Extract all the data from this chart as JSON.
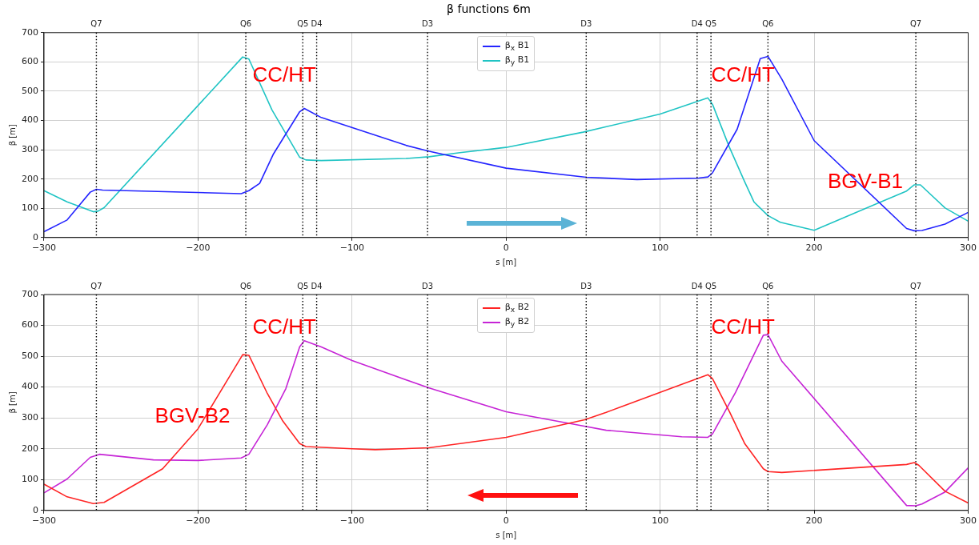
{
  "chart_data": [
    {
      "type": "line",
      "title": "β functions 6m",
      "xlabel": "s [m]",
      "ylabel": "β [m]",
      "legend": "top",
      "grid": true,
      "xlim": [
        -300,
        300
      ],
      "xticks": [
        {
          "value": -300,
          "label": "−300"
        },
        {
          "value": -200,
          "label": "−200"
        },
        {
          "value": -100,
          "label": "−100"
        },
        0,
        100,
        200,
        300
      ],
      "ylim": [
        0,
        700
      ],
      "yticks": [
        0,
        100,
        200,
        300,
        400,
        500,
        600,
        700
      ],
      "series": [
        {
          "name": "β$_{x}$ B1",
          "color": "#2424ff",
          "x": [
            -300,
            -285,
            -270,
            -266,
            -262,
            -172,
            -167,
            -160,
            -151,
            -134,
            -131,
            -120,
            -65,
            -50,
            0,
            52,
            85,
            125,
            131,
            134,
            150,
            165,
            170,
            179,
            200,
            260,
            265,
            270,
            285,
            300
          ],
          "values": [
            20,
            60,
            155,
            165,
            162,
            150,
            160,
            185,
            286,
            430,
            441,
            410,
            315,
            295,
            237,
            206,
            198,
            203,
            207,
            221,
            370,
            611,
            619,
            541,
            331,
            31,
            23,
            24,
            46,
            86
          ]
        },
        {
          "name": "β$_{y}$ B1",
          "color": "#20c4c4",
          "x": [
            -300,
            -285,
            -268,
            -265,
            -261,
            -171,
            -167,
            -152,
            -134,
            -130,
            -120,
            -65,
            -50,
            -30,
            0,
            50,
            100,
            131,
            134,
            145,
            155,
            161,
            170,
            178,
            200,
            260,
            265,
            269,
            285,
            300
          ],
          "values": [
            160,
            122,
            88,
            90,
            102,
            617,
            610,
            436,
            274,
            265,
            263,
            270,
            276,
            290,
            308,
            360,
            422,
            477,
            455,
            308,
            189,
            121,
            75,
            52,
            25,
            159,
            180,
            180,
            101,
            56
          ]
        }
      ],
      "ref_lines": [
        {
          "axis": "x",
          "value": -266,
          "label": "Q7",
          "color": "#000000",
          "line_style": "dotted"
        },
        {
          "axis": "x",
          "value": -169,
          "label": "Q6",
          "color": "#000000",
          "line_style": "dotted"
        },
        {
          "axis": "x",
          "value": -132,
          "label": "Q5",
          "color": "#000000",
          "line_style": "dotted"
        },
        {
          "axis": "x",
          "value": -123,
          "label": "D4",
          "color": "#000000",
          "line_style": "dotted"
        },
        {
          "axis": "x",
          "value": -51,
          "label": "D3",
          "color": "#000000",
          "line_style": "dotted"
        },
        {
          "axis": "x",
          "value": 52,
          "label": "D3",
          "color": "#000000",
          "line_style": "dotted"
        },
        {
          "axis": "x",
          "value": 124,
          "label": "D4",
          "color": "#000000",
          "line_style": "dotted"
        },
        {
          "axis": "x",
          "value": 133,
          "label": "Q5",
          "color": "#000000",
          "line_style": "dotted"
        },
        {
          "axis": "x",
          "value": 170,
          "label": "Q6",
          "color": "#000000",
          "line_style": "dotted"
        },
        {
          "axis": "x",
          "value": 266,
          "label": "Q7",
          "color": "#000000",
          "line_style": "dotted"
        }
      ],
      "annotations": [
        "CC/HT",
        "CC/HT",
        "BGV-B1"
      ]
    },
    {
      "type": "line",
      "xlabel": "s [m]",
      "ylabel": "β [m]",
      "legend": "top",
      "grid": true,
      "xlim": [
        -300,
        300
      ],
      "xticks": [
        {
          "value": -300,
          "label": "−300"
        },
        {
          "value": -200,
          "label": "−200"
        },
        {
          "value": -100,
          "label": "−100"
        },
        0,
        100,
        200,
        300
      ],
      "ylim": [
        0,
        700
      ],
      "yticks": [
        0,
        100,
        200,
        300,
        400,
        500,
        600,
        700
      ],
      "series": [
        {
          "name": "β$_{x}$ B2",
          "color": "#ff2424",
          "x": [
            -300,
            -285,
            -268,
            -261,
            -223,
            -200,
            -171,
            -167,
            -155,
            -145,
            -134,
            -130,
            -100,
            -85,
            -50,
            0,
            51,
            65,
            114,
            131,
            134,
            145,
            155,
            167,
            170,
            179,
            260,
            265,
            268,
            285,
            300
          ],
          "values": [
            85,
            44,
            22,
            26,
            135,
            265,
            505,
            503,
            379,
            290,
            217,
            207,
            200,
            197,
            203,
            237,
            294,
            318,
            409,
            440,
            427,
            320,
            216,
            135,
            126,
            123,
            149,
            155,
            146,
            62,
            24
          ]
        },
        {
          "name": "β$_{y}$ B2",
          "color": "#c624d6",
          "x": [
            -300,
            -285,
            -270,
            -264,
            -229,
            -200,
            -172,
            -167,
            -155,
            -143,
            -134,
            -131,
            -120,
            -100,
            -80,
            -50,
            0,
            50,
            65,
            114,
            131,
            134,
            149,
            167,
            170,
            179,
            260,
            266,
            270,
            285,
            300
          ],
          "values": [
            57,
            102,
            172,
            182,
            164,
            162,
            170,
            182,
            278,
            395,
            531,
            550,
            530,
            486,
            450,
            397,
            320,
            274,
            260,
            239,
            237,
            248,
            383,
            568,
            570,
            484,
            16,
            15,
            21,
            60,
            138
          ]
        }
      ],
      "ref_lines": [
        {
          "axis": "x",
          "value": -266,
          "label": "Q7",
          "color": "#000000",
          "line_style": "dotted"
        },
        {
          "axis": "x",
          "value": -169,
          "label": "Q6",
          "color": "#000000",
          "line_style": "dotted"
        },
        {
          "axis": "x",
          "value": -132,
          "label": "Q5",
          "color": "#000000",
          "line_style": "dotted"
        },
        {
          "axis": "x",
          "value": -123,
          "label": "D4",
          "color": "#000000",
          "line_style": "dotted"
        },
        {
          "axis": "x",
          "value": -51,
          "label": "D3",
          "color": "#000000",
          "line_style": "dotted"
        },
        {
          "axis": "x",
          "value": 52,
          "label": "D3",
          "color": "#000000",
          "line_style": "dotted"
        },
        {
          "axis": "x",
          "value": 124,
          "label": "D4",
          "color": "#000000",
          "line_style": "dotted"
        },
        {
          "axis": "x",
          "value": 133,
          "label": "Q5",
          "color": "#000000",
          "line_style": "dotted"
        },
        {
          "axis": "x",
          "value": 170,
          "label": "Q6",
          "color": "#000000",
          "line_style": "dotted"
        },
        {
          "axis": "x",
          "value": 266,
          "label": "Q7",
          "color": "#000000",
          "line_style": "dotted"
        }
      ],
      "annotations": [
        "CC/HT",
        "CC/HT",
        "BGV-B2"
      ]
    }
  ]
}
